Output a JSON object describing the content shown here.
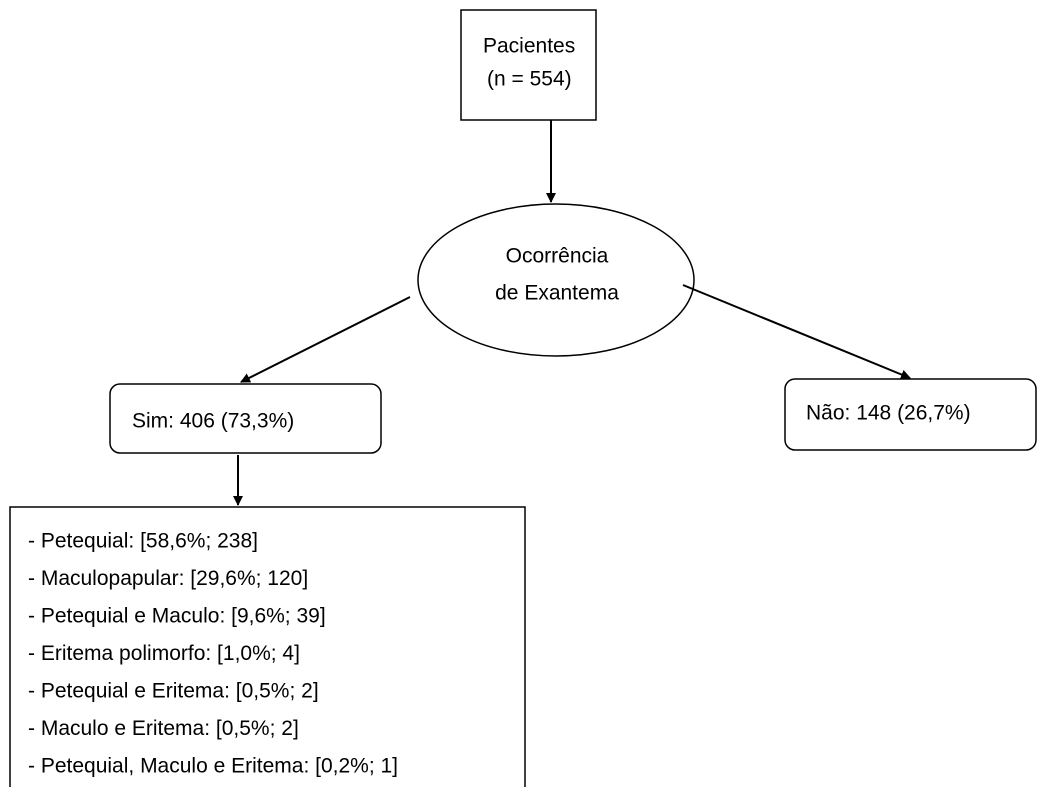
{
  "nodes": [
    {
      "lines": [
        "Pacientes",
        "(n = 554)"
      ]
    },
    {
      "lines": [
        "Ocorrência",
        "de Exantema"
      ]
    },
    {
      "lines": [
        "Sim: 406 (73,3%)"
      ]
    },
    {
      "lines": [
        "Não: 148 (26,7%)"
      ]
    }
  ],
  "list": {
    "items": [
      "- Petequial: [58,6%; 238]",
      "- Maculopapular: [29,6%; 120]",
      "- Petequial e Maculo: [9,6%; 39]",
      "- Eritema polimorfo: [1,0%; 4]",
      "- Petequial e Eritema: [0,5%; 2]",
      "- Maculo e Eritema: [0,5%; 2]",
      "- Petequial, Maculo e Eritema: [0,2%; 1]"
    ]
  }
}
